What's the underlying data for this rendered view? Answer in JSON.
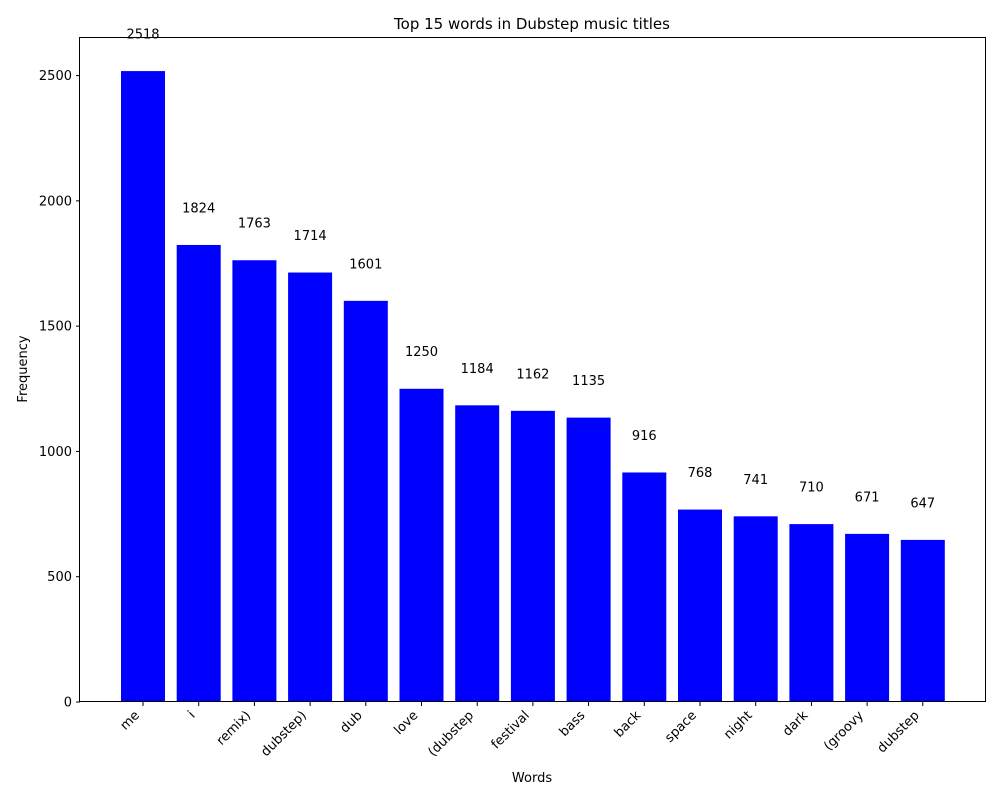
{
  "chart_data": {
    "type": "bar",
    "title": "Top 15 words in Dubstep music titles",
    "xlabel": "Words",
    "ylabel": "Frequency",
    "categories": [
      "me",
      "i",
      "remix)",
      "dubstep)",
      "dub",
      "love",
      "(dubstep",
      "festival",
      "bass",
      "back",
      "space",
      "night",
      "dark",
      "(groovy",
      "dubstep"
    ],
    "values": [
      2518,
      1824,
      1763,
      1714,
      1601,
      1250,
      1184,
      1162,
      1135,
      916,
      768,
      741,
      710,
      671,
      647
    ],
    "yticks": [
      0,
      500,
      1000,
      1500,
      2000,
      2500
    ],
    "ylim": [
      0,
      2650
    ],
    "grid": false,
    "legend": "none",
    "bar_color": "#0000ff"
  }
}
